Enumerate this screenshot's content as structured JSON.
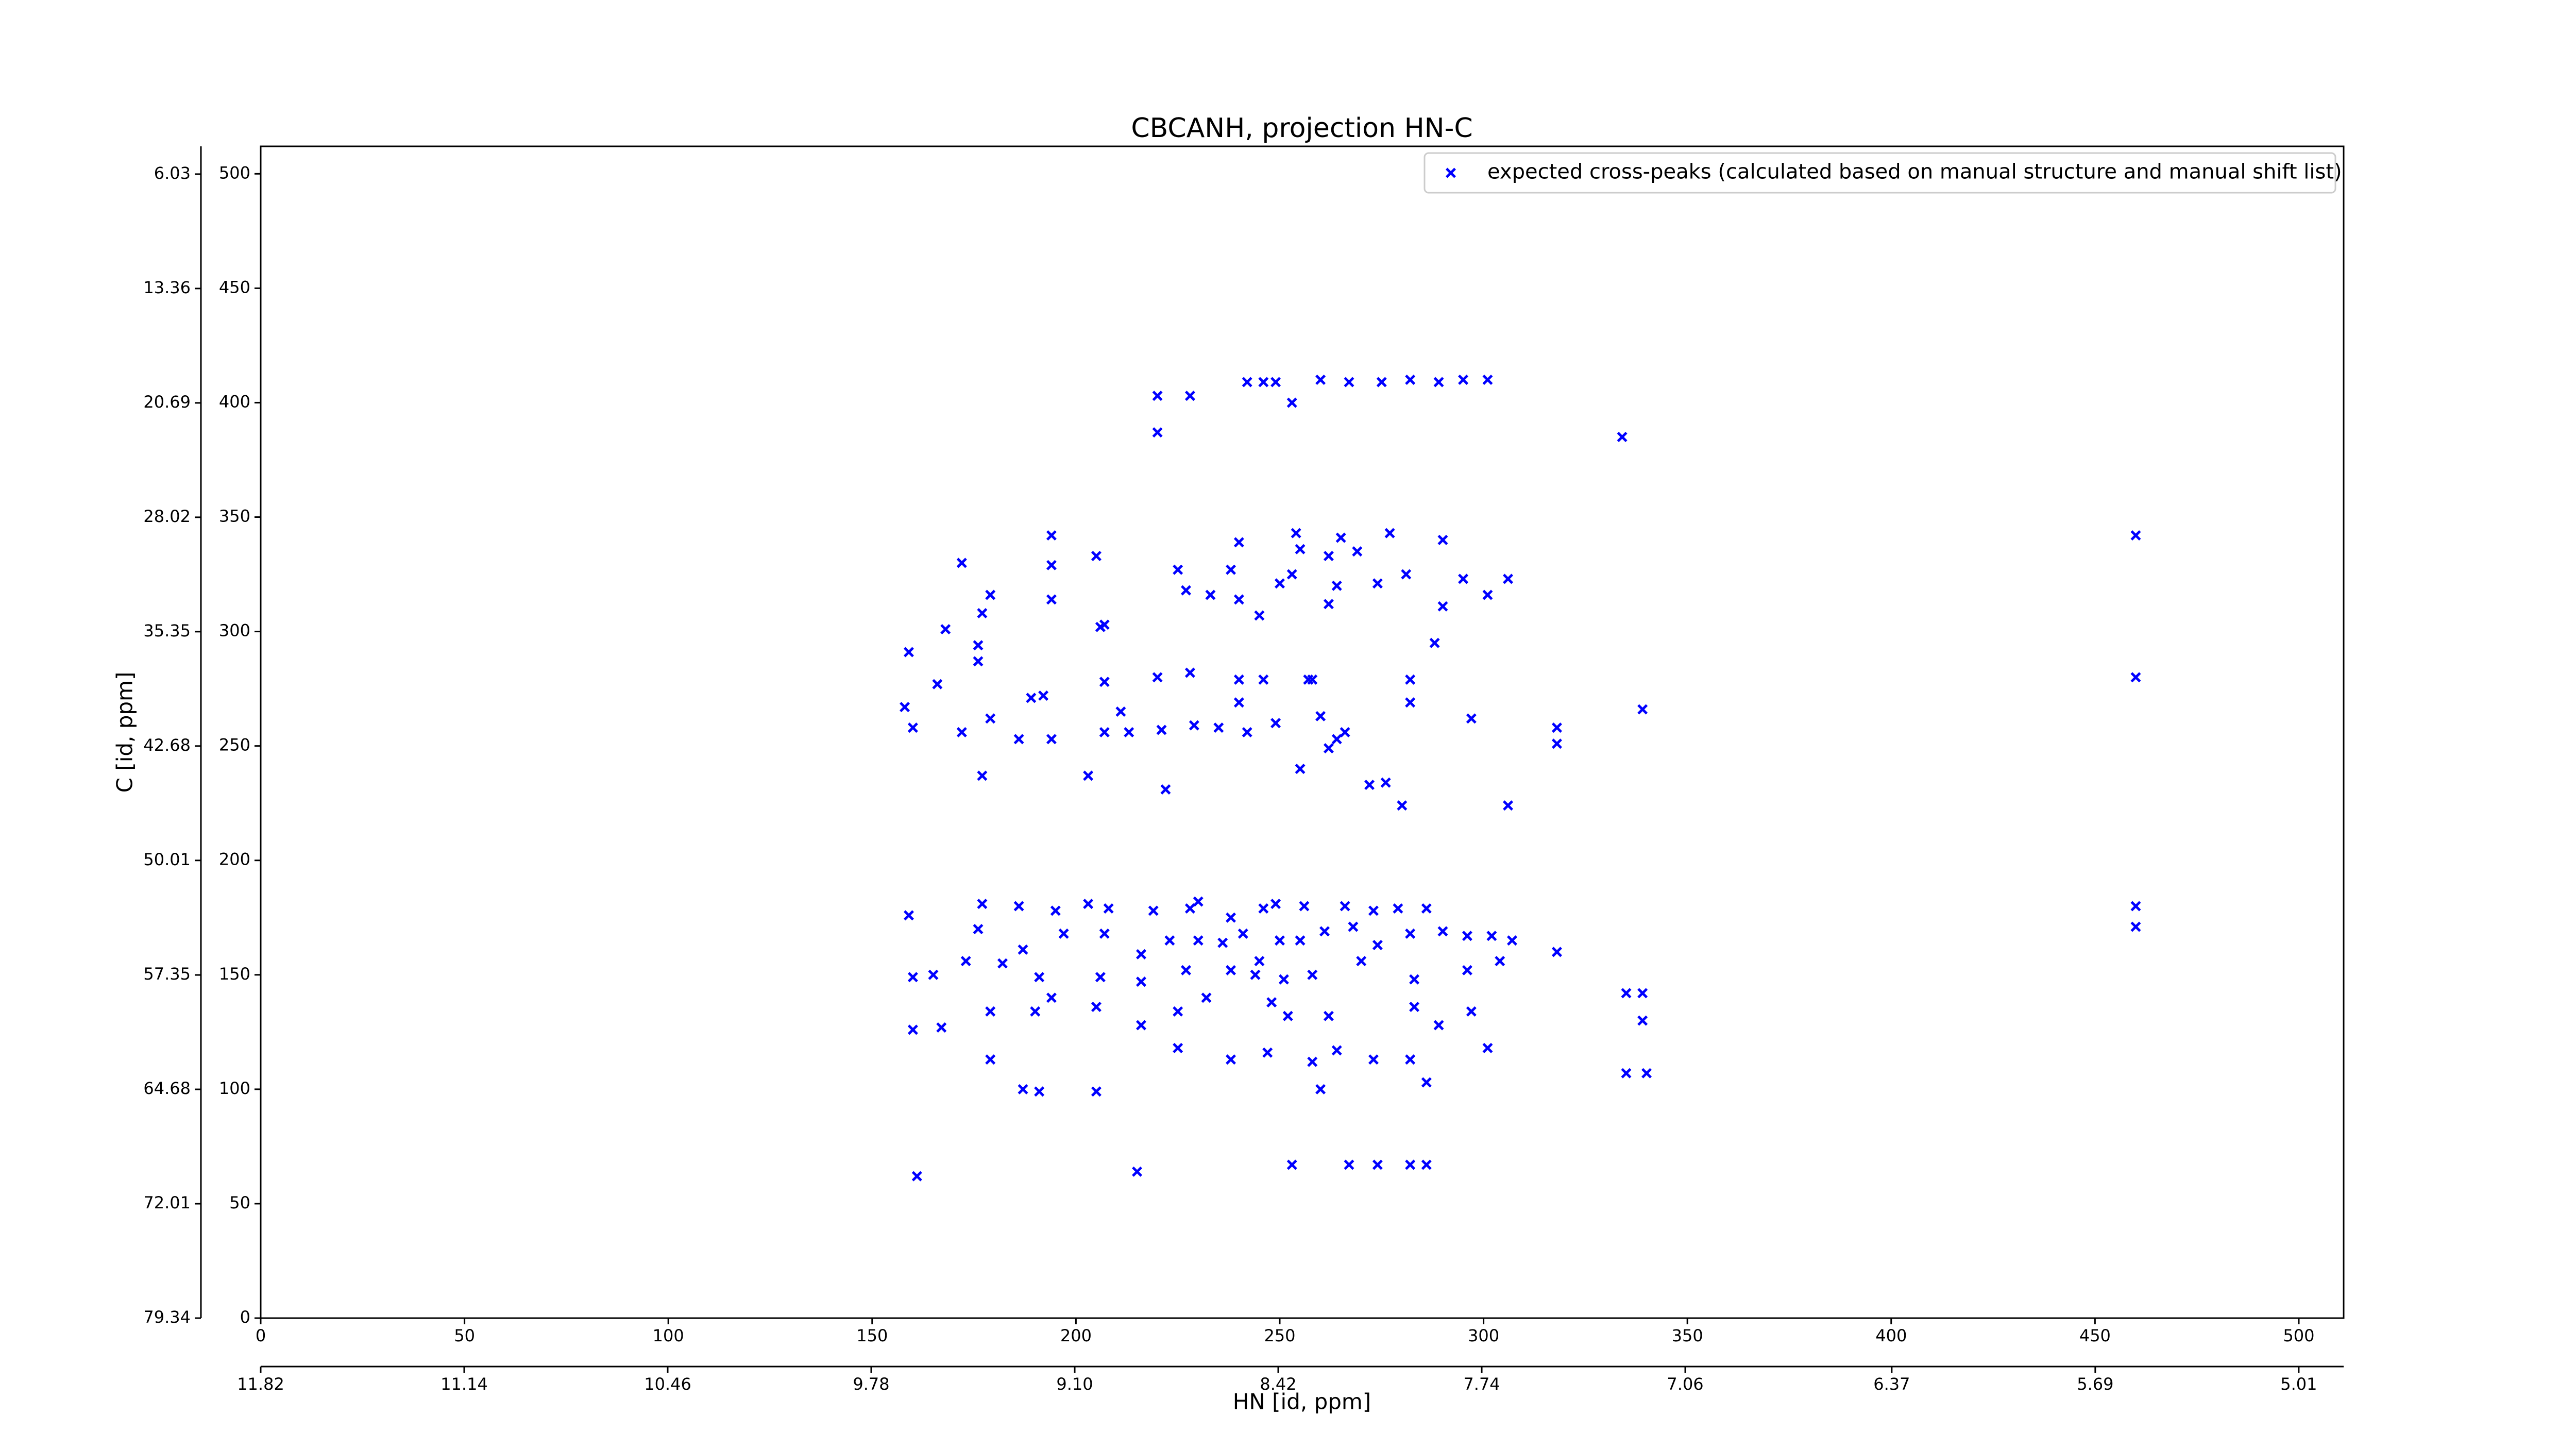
{
  "chart_data": {
    "type": "scatter",
    "title": "CBCANH, projection HN-C",
    "x_label": "HN [id, ppm]",
    "y_label": "C [id, ppm]",
    "xlim": [
      0,
      511
    ],
    "xticks": [
      0,
      50,
      100,
      150,
      200,
      250,
      300,
      350,
      400,
      450,
      500
    ],
    "ylim": [
      0,
      512
    ],
    "yticks": [
      0,
      50,
      100,
      150,
      200,
      250,
      300,
      350,
      400,
      450,
      500
    ],
    "x2lim": [
      11.82,
      4.86
    ],
    "x2ticks": [
      11.82,
      11.14,
      10.46,
      9.78,
      {
        "value": 9.1,
        "label": "9.10"
      },
      8.42,
      7.74,
      7.06,
      6.37,
      5.69,
      5.01
    ],
    "y2lim": [
      79.34,
      4.25
    ],
    "y2ticks": [
      6.03,
      13.36,
      20.69,
      28.02,
      35.35,
      42.68,
      50.01,
      57.35,
      64.68,
      72.01,
      79.34
    ],
    "legend": "upper right",
    "series": [
      {
        "name": "expected cross-peaks (calculated based on manual structure and manual shift list)",
        "color": "#0000ff",
        "x": [
          220,
          228,
          242,
          246,
          249,
          253,
          260,
          267,
          275,
          282,
          289,
          295,
          301,
          220,
          460,
          460,
          460,
          460,
          194,
          172,
          179,
          177,
          194,
          168,
          159,
          176,
          176,
          166,
          158,
          160,
          172,
          179,
          177,
          186,
          192,
          189,
          194,
          203,
          205,
          206,
          207,
          207,
          207,
          211,
          213,
          220,
          221,
          222,
          225,
          227,
          228,
          229,
          233,
          235,
          238,
          240,
          240,
          240,
          240,
          242,
          245,
          246,
          249,
          250,
          253,
          254,
          255,
          257,
          258,
          260,
          262,
          264,
          265,
          266,
          269,
          274,
          277,
          281,
          282,
          282,
          288,
          290,
          295,
          297,
          306,
          301,
          318,
          318,
          334,
          339,
          255,
          262,
          264,
          272,
          276,
          280,
          306,
          159,
          177,
          186,
          195,
          203,
          208,
          219,
          228,
          230,
          238,
          246,
          249,
          256,
          266,
          273,
          279,
          286,
          176,
          187,
          197,
          207,
          216,
          223,
          230,
          236,
          241,
          245,
          250,
          255,
          261,
          268,
          274,
          282,
          290,
          296,
          302,
          307,
          318,
          160,
          165,
          173,
          182,
          191,
          206,
          216,
          227,
          238,
          244,
          251,
          258,
          270,
          283,
          296,
          304,
          160,
          167,
          179,
          190,
          194,
          205,
          216,
          225,
          232,
          248,
          252,
          262,
          283,
          289,
          297,
          301,
          335,
          339,
          339,
          179,
          187,
          191,
          205,
          225,
          238,
          247,
          258,
          264,
          273,
          282,
          286,
          260,
          335,
          340,
          161,
          215,
          253,
          267,
          282,
          286,
          274,
          194,
          262,
          290
        ],
        "y": [
          403,
          403,
          409,
          409,
          409,
          400,
          410,
          409,
          409,
          410,
          409,
          410,
          410,
          387,
          342,
          280,
          180,
          171,
          342,
          330,
          316,
          308,
          314,
          301,
          291,
          294,
          287,
          277,
          267,
          258,
          256,
          262,
          237,
          253,
          272,
          271,
          253,
          237,
          333,
          302,
          303,
          278,
          256,
          265,
          256,
          280,
          257,
          231,
          327,
          318,
          282,
          259,
          316,
          258,
          327,
          314,
          339,
          279,
          269,
          256,
          307,
          279,
          260,
          321,
          325,
          343,
          336,
          279,
          279,
          263,
          312,
          320,
          341,
          256,
          335,
          321,
          343,
          325,
          279,
          269,
          295,
          340,
          323,
          262,
          323,
          316,
          258,
          251,
          385,
          266,
          240,
          249,
          253,
          233,
          234,
          224,
          224,
          176,
          181,
          180,
          178,
          181,
          179,
          178,
          179,
          182,
          175,
          179,
          181,
          180,
          180,
          178,
          179,
          179,
          170,
          161,
          168,
          168,
          159,
          165,
          165,
          164,
          168,
          156,
          165,
          165,
          169,
          171,
          163,
          168,
          169,
          167,
          167,
          165,
          160,
          149,
          150,
          156,
          155,
          149,
          149,
          147,
          152,
          152,
          150,
          148,
          150,
          156,
          148,
          152,
          156,
          126,
          127,
          134,
          134,
          140,
          136,
          128,
          134,
          140,
          138,
          132,
          132,
          136,
          128,
          134,
          118,
          142,
          142,
          130,
          113,
          100,
          99,
          99,
          118,
          113,
          116,
          112,
          117,
          113,
          113,
          103,
          100,
          107,
          107,
          62,
          64,
          67,
          67,
          67,
          67,
          67,
          329,
          333,
          311
        ]
      }
    ]
  }
}
